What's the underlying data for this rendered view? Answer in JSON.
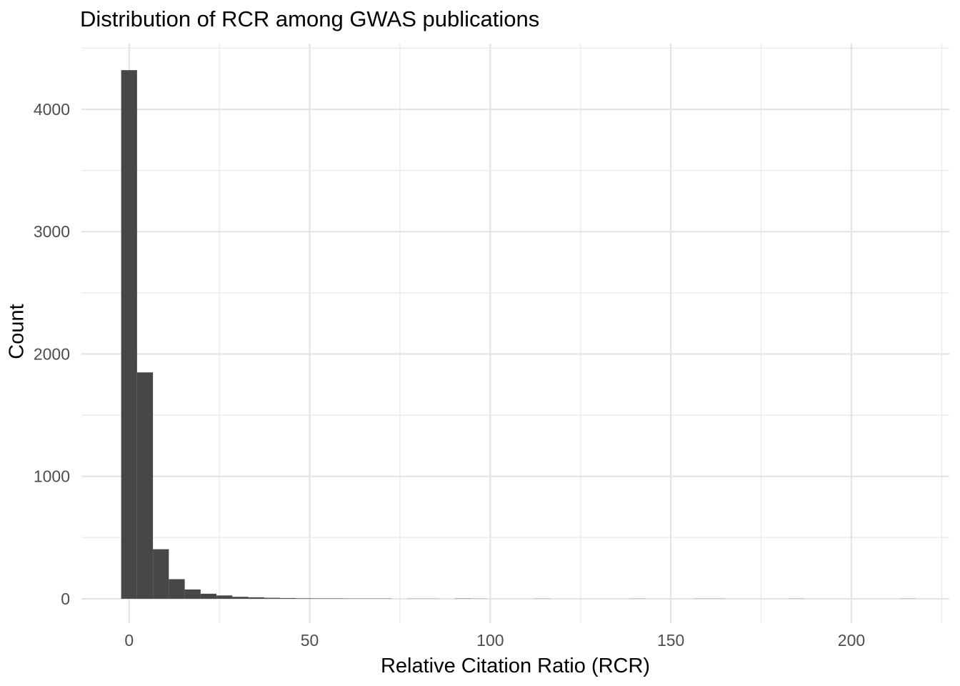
{
  "page": {
    "background": "#FFFFFF"
  },
  "chart_data": {
    "type": "bar",
    "subtype": "histogram",
    "title": "Distribution of RCR among GWAS publications",
    "xlabel": "Relative Citation Ratio (RCR)",
    "ylabel": "Count",
    "legend": "none",
    "grid": "on",
    "x_ticks": [
      0,
      50,
      100,
      150,
      200
    ],
    "x_minor_gridlines": [
      25,
      75,
      125,
      175,
      225
    ],
    "y_ticks": [
      0,
      1000,
      2000,
      3000,
      4000
    ],
    "y_minor_gridlines": [
      500,
      1500,
      2500,
      3500,
      4500
    ],
    "xlim": [
      -13.2,
      227.1
    ],
    "ylim": [
      -199,
      4537
    ],
    "bin_width": 4.4,
    "bins": [
      {
        "x": 0,
        "count": 4320
      },
      {
        "x": 4.4,
        "count": 1850
      },
      {
        "x": 8.8,
        "count": 405
      },
      {
        "x": 13.2,
        "count": 160
      },
      {
        "x": 17.6,
        "count": 76
      },
      {
        "x": 22,
        "count": 41
      },
      {
        "x": 26.4,
        "count": 27
      },
      {
        "x": 30.8,
        "count": 16
      },
      {
        "x": 35.2,
        "count": 12
      },
      {
        "x": 39.6,
        "count": 8
      },
      {
        "x": 44,
        "count": 6
      },
      {
        "x": 48.4,
        "count": 4
      },
      {
        "x": 52.8,
        "count": 3
      },
      {
        "x": 57.2,
        "count": 3
      },
      {
        "x": 61.6,
        "count": 2
      },
      {
        "x": 66,
        "count": 2
      },
      {
        "x": 70.4,
        "count": 2
      },
      {
        "x": 79.2,
        "count": 1
      },
      {
        "x": 83.6,
        "count": 1
      },
      {
        "x": 92.4,
        "count": 2
      },
      {
        "x": 96.8,
        "count": 1
      },
      {
        "x": 114.4,
        "count": 1
      },
      {
        "x": 140.8,
        "count": 1
      },
      {
        "x": 158.4,
        "count": 1
      },
      {
        "x": 162.8,
        "count": 1
      },
      {
        "x": 184.8,
        "count": 1
      },
      {
        "x": 215.6,
        "count": 1
      }
    ],
    "colors": {
      "bar_fill": "#474747",
      "grid_major": "#E4E4E4",
      "grid_minor": "#ECECEC",
      "tick_label": "#4D4D4D",
      "axis_title": "#000000",
      "title": "#000000",
      "background": "#FFFFFF"
    }
  }
}
